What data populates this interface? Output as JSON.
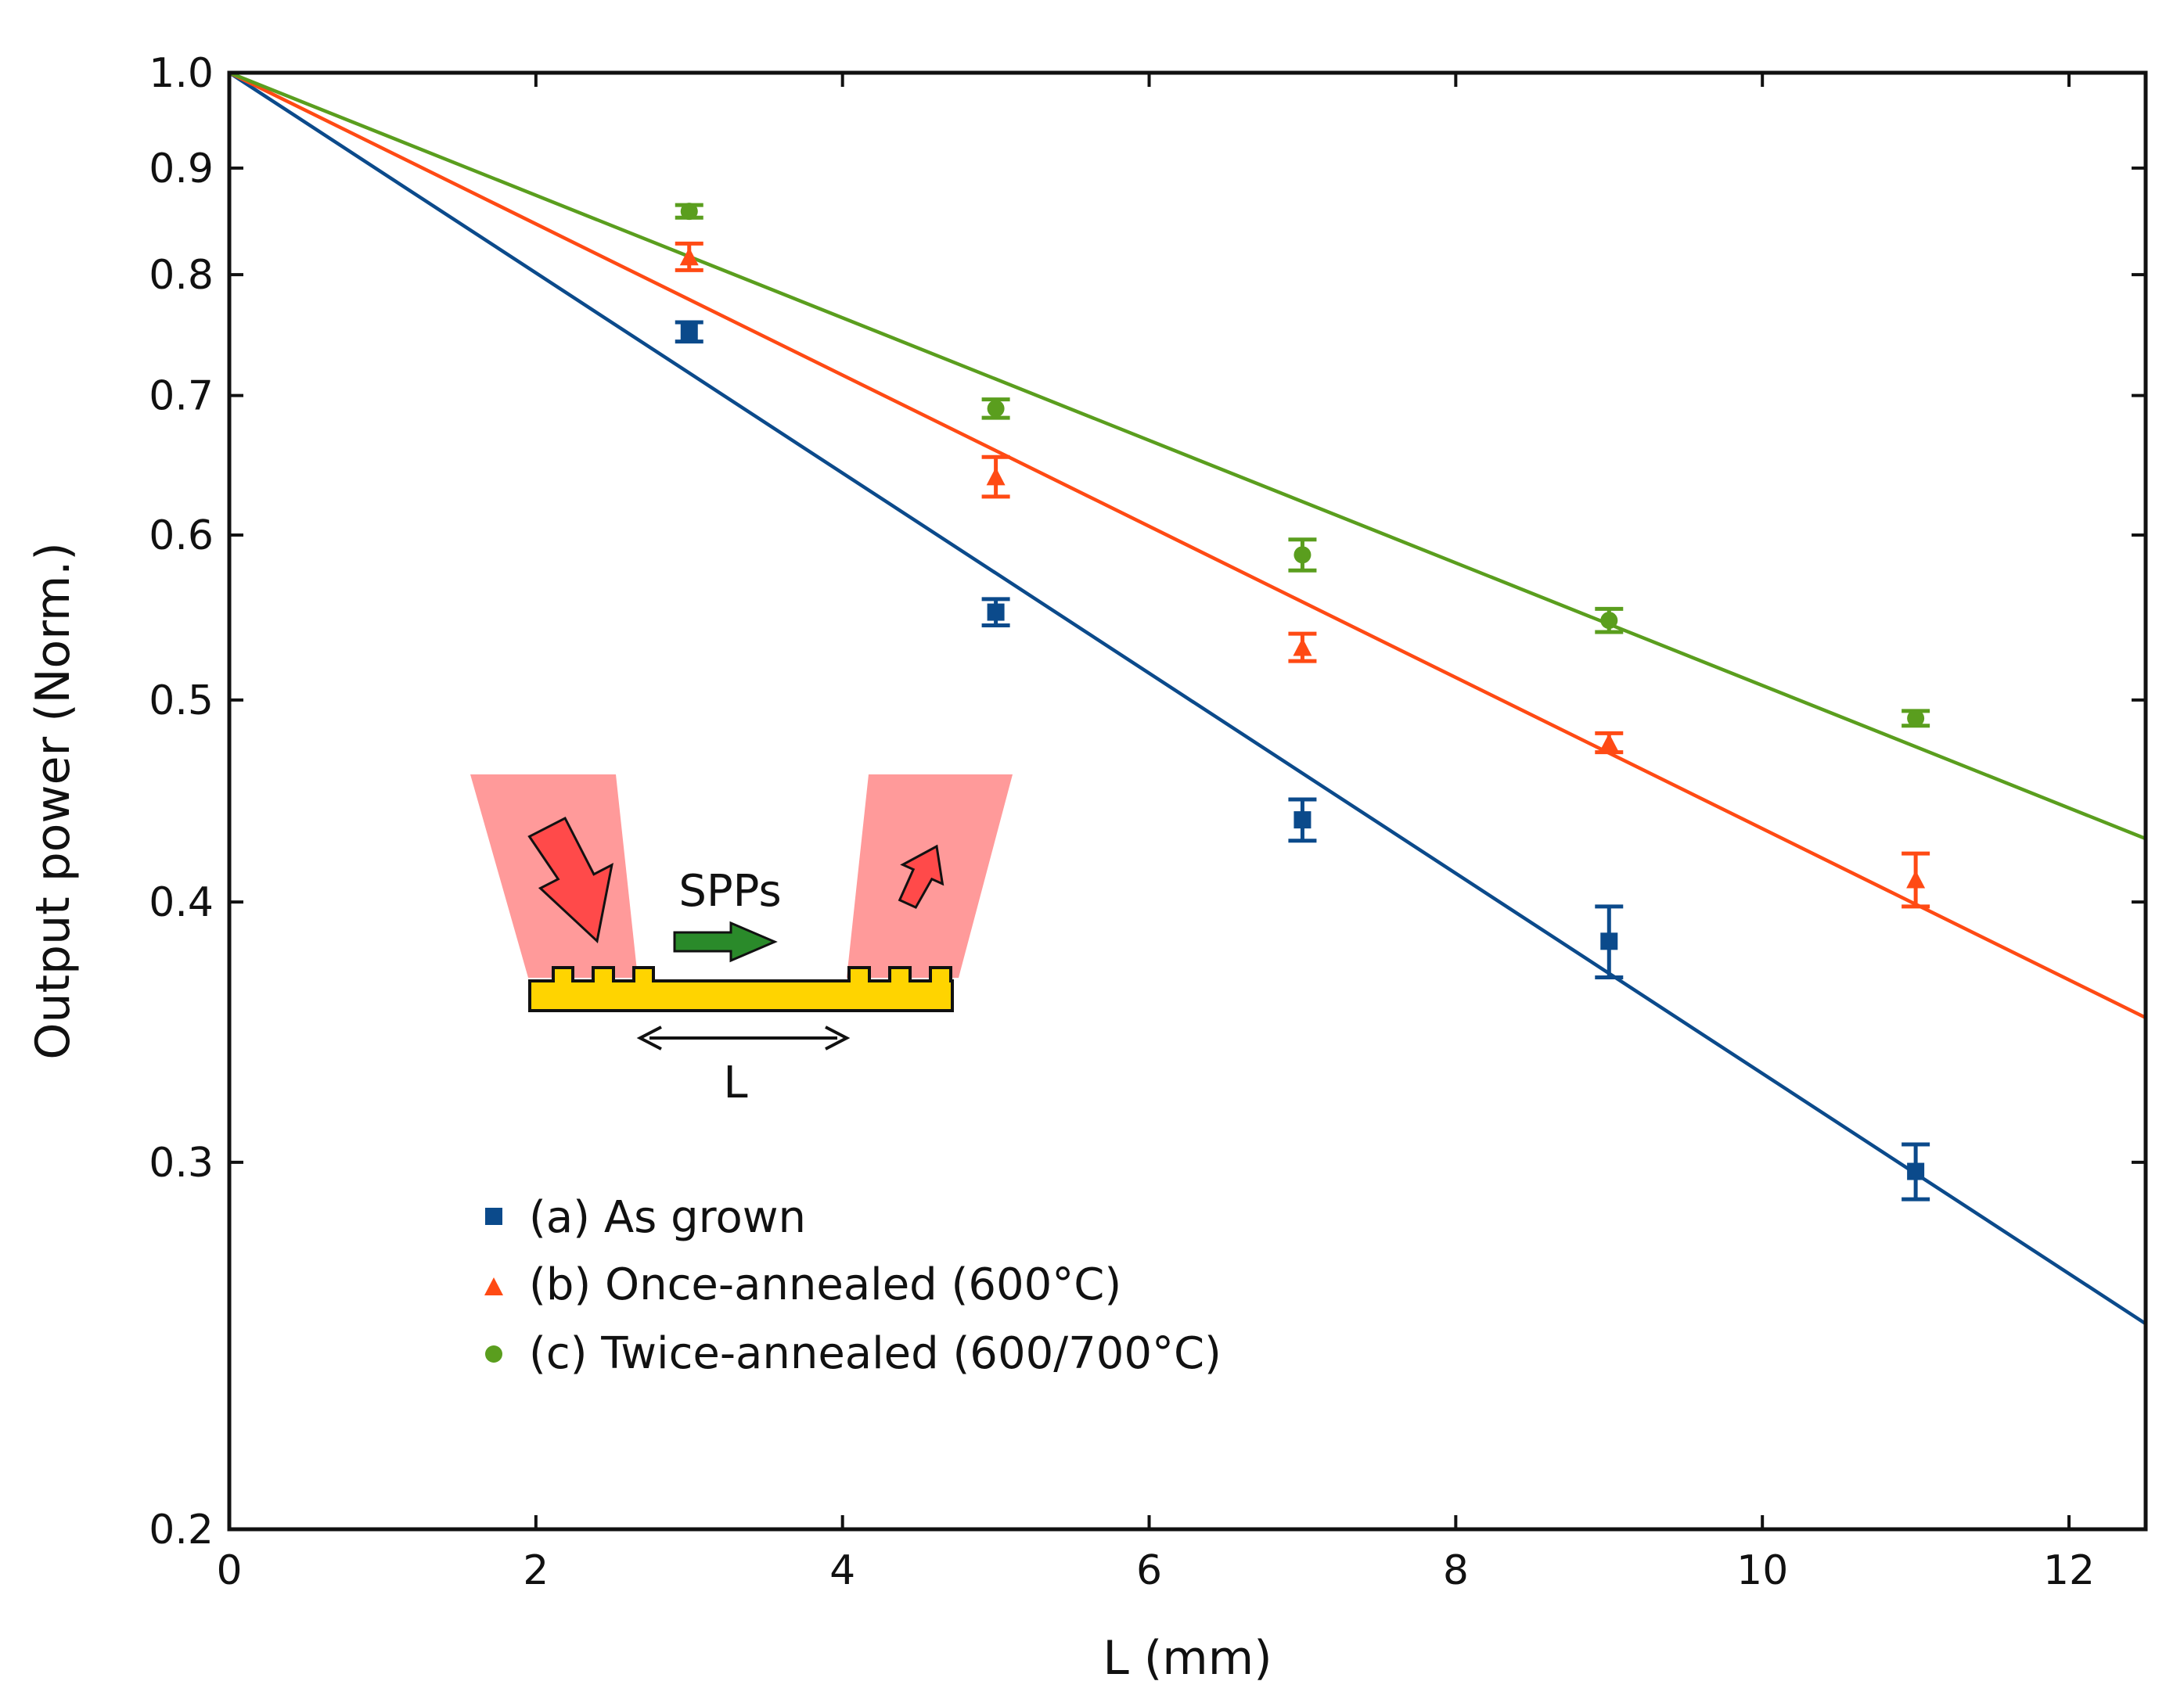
{
  "chart_data": {
    "type": "scatter",
    "xlabel": "L (mm)",
    "ylabel": "Output power (Norm.)",
    "xlim": [
      0,
      12.5
    ],
    "ylim": [
      0.2,
      1.0
    ],
    "yscale": "log",
    "xticks": [
      0,
      2,
      4,
      6,
      8,
      10,
      12
    ],
    "xtick_labels": [
      "0",
      "2",
      "4",
      "6",
      "8",
      "10",
      "12"
    ],
    "yticks": [
      0.2,
      0.3,
      0.4,
      0.5,
      0.6,
      0.7,
      0.8,
      0.9,
      1.0
    ],
    "ytick_labels": [
      "0.2",
      "0.3",
      "0.4",
      "0.5",
      "0.6",
      "0.7",
      "0.8",
      "0.9",
      "1.0"
    ],
    "grid": false,
    "legend_position": "lower-left",
    "series": [
      {
        "name": "(a) As grown",
        "marker": "square",
        "color": "#0b4a8b",
        "x": [
          3,
          5,
          7,
          9,
          11
        ],
        "y": [
          0.751,
          0.551,
          0.438,
          0.383,
          0.297
        ],
        "err": [
          0.008,
          0.008,
          0.01,
          0.015,
          0.009
        ],
        "fit": {
          "x": [
            0,
            12.5
          ],
          "y": [
            1.0,
            0.251
          ]
        }
      },
      {
        "name": "(b) Once-annealed (600°C)",
        "marker": "triangle",
        "color": "#ff4a14",
        "x": [
          3,
          5,
          7,
          9,
          11
        ],
        "y": [
          0.816,
          0.64,
          0.53,
          0.477,
          0.41
        ],
        "err": [
          0.012,
          0.014,
          0.008,
          0.005,
          0.012
        ],
        "fit": {
          "x": [
            0,
            12.5
          ],
          "y": [
            1.0,
            0.352
          ]
        }
      },
      {
        "name": "(c) Twice-annealed (600/700°C)",
        "marker": "circle",
        "color": "#5a9e1e",
        "x": [
          3,
          5,
          7,
          9,
          11
        ],
        "y": [
          0.858,
          0.69,
          0.587,
          0.546,
          0.49
        ],
        "err": [
          0.006,
          0.007,
          0.01,
          0.007,
          0.004
        ],
        "fit": {
          "x": [
            0,
            12.5
          ],
          "y": [
            1.0,
            0.429
          ]
        }
      }
    ]
  },
  "inset": {
    "label_spps": "SPPs",
    "label_length": "L"
  },
  "colors": {
    "axis": "#111111",
    "beam": "#ff9a9a",
    "arrow_red": "#ff4a4a",
    "arrow_green": "#2a8a2a",
    "gold": "#ffd400"
  }
}
